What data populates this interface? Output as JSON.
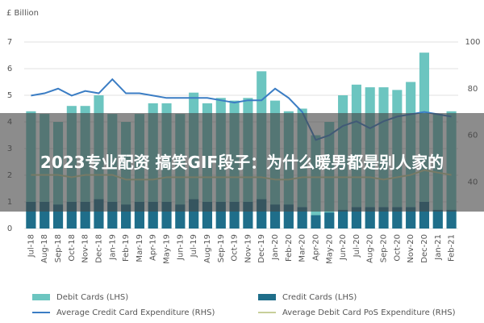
{
  "chart_data": {
    "type": "combo",
    "y_label": "£ Billion",
    "categories": [
      "Jul-18",
      "Aug-18",
      "Sep-18",
      "Oct-18",
      "Nov-18",
      "Dec-18",
      "Jan-19",
      "Feb-19",
      "Mar-19",
      "Apr-19",
      "May-19",
      "Jun-19",
      "Jul-19",
      "Aug-19",
      "Sep-19",
      "Oct-19",
      "Nov-19",
      "Dec-19",
      "Jan-20",
      "Feb-20",
      "Mar-20",
      "Apr-20",
      "May-20",
      "Jun-20",
      "Jul-20",
      "Aug-20",
      "Sep-20",
      "Oct-20",
      "Nov-20",
      "Dec-20",
      "Jan-21",
      "Feb-21"
    ],
    "series": [
      {
        "name": "Debit Cards (LHS)",
        "type": "bar",
        "color": "#6cc5c0",
        "values": [
          4.4,
          4.3,
          4.0,
          4.6,
          4.6,
          5.0,
          4.3,
          4.0,
          4.3,
          4.7,
          4.7,
          4.3,
          5.1,
          4.7,
          4.9,
          4.8,
          4.9,
          5.9,
          4.8,
          4.4,
          4.5,
          3.5,
          4.0,
          5.0,
          5.4,
          5.3,
          5.3,
          5.2,
          5.5,
          6.6,
          4.3,
          4.4
        ]
      },
      {
        "name": "Credit Cards (LHS)",
        "type": "bar",
        "color": "#1f6e8a",
        "values": [
          1.0,
          1.0,
          0.9,
          1.0,
          1.0,
          1.1,
          1.0,
          0.9,
          1.0,
          1.0,
          1.0,
          0.9,
          1.1,
          1.0,
          1.0,
          1.0,
          1.0,
          1.1,
          0.9,
          0.9,
          0.8,
          0.5,
          0.6,
          0.7,
          0.8,
          0.8,
          0.8,
          0.8,
          0.8,
          1.0,
          0.7,
          0.7
        ]
      },
      {
        "name": "Average Credit Card Expenditure (RHS)",
        "type": "line",
        "axis": "y2",
        "color": "#3b7dc4",
        "values": [
          77,
          78,
          80,
          77,
          79,
          78,
          84,
          78,
          78,
          77,
          76,
          76,
          76,
          76,
          75,
          74,
          75,
          75,
          80,
          76,
          70,
          58,
          60,
          64,
          66,
          63,
          66,
          68,
          69,
          70,
          69,
          68
        ]
      },
      {
        "name": "Average Debit Card PoS Expenditure (RHS)",
        "type": "line",
        "axis": "y2",
        "color": "#c8cf9a",
        "values": [
          43,
          43,
          43,
          42,
          43,
          43,
          43,
          41,
          41,
          41,
          42,
          42,
          42,
          42,
          42,
          42,
          42,
          42,
          41,
          41,
          42,
          42,
          42,
          42,
          42,
          42,
          41,
          42,
          43,
          45,
          44,
          43
        ]
      }
    ],
    "ylim": [
      0,
      7
    ],
    "yticks": [
      0,
      1,
      2,
      3,
      4,
      5,
      6,
      7
    ],
    "y2lim": [
      20,
      100
    ],
    "y2ticks": [
      40,
      60,
      80,
      100
    ],
    "grid": true
  },
  "banner": "2023专业配资 搞笑GIF段子：为什么暖男都是别人家的"
}
